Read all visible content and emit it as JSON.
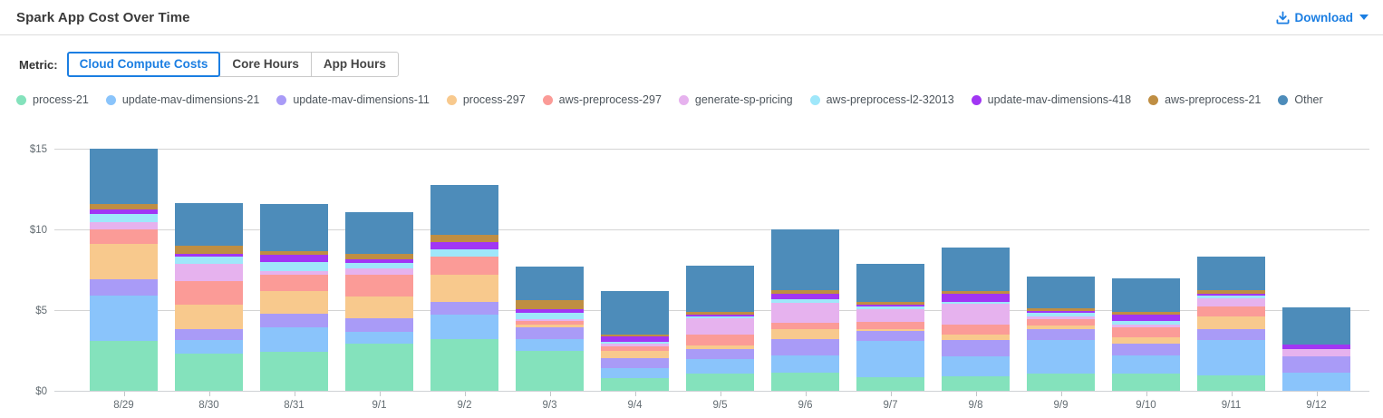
{
  "header": {
    "title": "Spark App Cost Over Time",
    "download_label": "Download"
  },
  "controls": {
    "metric_label": "Metric:",
    "options": [
      "Cloud Compute Costs",
      "Core Hours",
      "App Hours"
    ],
    "active": "Cloud Compute Costs"
  },
  "colors": {
    "accent": "#1b7ee2",
    "grid": "#d4d4d4",
    "axis_text": "#636c72"
  },
  "chart_data": {
    "type": "bar",
    "stacked": true,
    "title": "Spark App Cost Over Time",
    "unit": "USD",
    "grid": true,
    "legend_position": "top",
    "x": [
      "8/29",
      "8/30",
      "8/31",
      "9/1",
      "9/2",
      "9/3",
      "9/4",
      "9/5",
      "9/6",
      "9/7",
      "9/8",
      "9/9",
      "9/10",
      "9/11",
      "9/12"
    ],
    "y_ticks": [
      "$0",
      "$5",
      "$10",
      "$15"
    ],
    "ylim": [
      0,
      15
    ],
    "series": [
      {
        "name": "process-21",
        "color": "#84e2bc",
        "values": [
          3.1,
          2.33,
          2.42,
          2.95,
          3.21,
          2.48,
          0.81,
          1.08,
          1.14,
          0.86,
          0.91,
          1.05,
          1.05,
          0.95,
          0
        ]
      },
      {
        "name": "update-mav-dimensions-21",
        "color": "#8ac4fb",
        "values": [
          2.81,
          0.82,
          1.54,
          0.72,
          1.5,
          0.72,
          0.59,
          0.89,
          1.08,
          2.24,
          1.24,
          2.09,
          1.14,
          2.19,
          1.12
        ]
      },
      {
        "name": "update-mav-dimensions-11",
        "color": "#a99bf7",
        "values": [
          1.02,
          0.69,
          0.8,
          0.8,
          0.82,
          0.76,
          0.65,
          0.62,
          1.01,
          0.61,
          1.02,
          0.66,
          0.76,
          0.66,
          1.03
        ]
      },
      {
        "name": "process-297",
        "color": "#f8c98d",
        "values": [
          2.18,
          1.52,
          1.4,
          1.39,
          1.69,
          0.17,
          0.43,
          0.23,
          0.57,
          0.12,
          0.31,
          0.25,
          0.34,
          0.82,
          0
        ]
      },
      {
        "name": "aws-preprocess-297",
        "color": "#fb9b97",
        "values": [
          0.91,
          1.44,
          1.05,
          1.35,
          1.09,
          0.19,
          0.28,
          0.66,
          0.44,
          0.45,
          0.65,
          0.38,
          0.65,
          0.61,
          0
        ]
      },
      {
        "name": "generate-sp-pricing",
        "color": "#e6b2ee",
        "values": [
          0.43,
          1.09,
          0.21,
          0.36,
          0,
          0.1,
          0.15,
          0.99,
          1.22,
          0.8,
          1.29,
          0.19,
          0.15,
          0.51,
          0.45
        ]
      },
      {
        "name": "aws-preprocess-l2-32013",
        "color": "#9fe7fa",
        "values": [
          0.52,
          0.42,
          0.58,
          0.38,
          0.47,
          0.43,
          0.14,
          0.15,
          0.19,
          0.13,
          0.1,
          0.19,
          0.24,
          0.19,
          0
        ]
      },
      {
        "name": "update-mav-dimensions-418",
        "color": "#a136f4",
        "values": [
          0.28,
          0.19,
          0.45,
          0.19,
          0.42,
          0.19,
          0.32,
          0.13,
          0.34,
          0.11,
          0.48,
          0.13,
          0.37,
          0.1,
          0.28
        ]
      },
      {
        "name": "aws-preprocess-21",
        "color": "#bf8e43",
        "values": [
          0.34,
          0.47,
          0.18,
          0.32,
          0.49,
          0.59,
          0.11,
          0.15,
          0.23,
          0.19,
          0.19,
          0.19,
          0.19,
          0.19,
          0
        ]
      },
      {
        "name": "Other",
        "color": "#4d8cba",
        "values": [
          3.41,
          2.66,
          2.94,
          2.59,
          3.09,
          2.07,
          2.73,
          2.88,
          3.8,
          2.34,
          2.69,
          1.96,
          2.09,
          2.09,
          2.27
        ]
      }
    ]
  }
}
